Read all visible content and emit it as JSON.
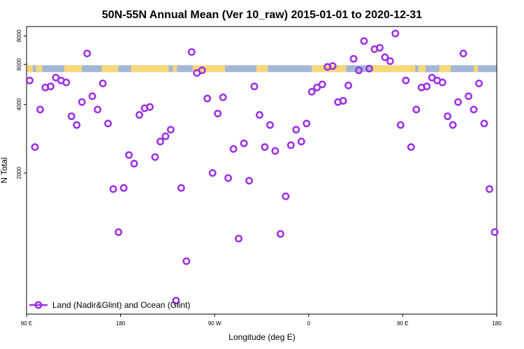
{
  "chart_data": {
    "type": "scatter",
    "title": "50N-55N Annual Mean (Ver 10_raw)   2015-01-01 to 2020-12-31",
    "xlabel": "Longitude (deg E)",
    "ylabel": "N Total",
    "y_scale": "log",
    "ylim": [
      480,
      8800
    ],
    "x_ticks": [
      {
        "value": 90,
        "label": "90 E"
      },
      {
        "value": 180,
        "label": "180"
      },
      {
        "value": 270,
        "label": "90 W"
      },
      {
        "value": 360,
        "label": "0"
      },
      {
        "value": 450,
        "label": "90 E"
      },
      {
        "value": 540,
        "label": "180"
      }
    ],
    "xlim": [
      90,
      540
    ],
    "y_ticks": [
      {
        "value": 2000,
        "label": "2000"
      },
      {
        "value": 4000,
        "label": "4000"
      },
      {
        "value": 6000,
        "label": "6000"
      },
      {
        "value": 8000,
        "label": "8000"
      }
    ],
    "grid": false,
    "legend_position": "bottom-left",
    "surface_strip": {
      "value_range": [
        5550,
        5950
      ],
      "land_color": "#f6d77a",
      "ocean_color": "#a3b8d8",
      "land_segments": [
        [
          90,
          96
        ],
        [
          99,
          105
        ],
        [
          126,
          143
        ],
        [
          162,
          178
        ],
        [
          190,
          226
        ],
        [
          230,
          234
        ],
        [
          249,
          280
        ],
        [
          310,
          321
        ],
        [
          363,
          396
        ],
        [
          420,
          462
        ],
        [
          465,
          472
        ],
        [
          485,
          496
        ],
        [
          518,
          522
        ]
      ]
    },
    "series": [
      {
        "name": "Land (Nadir&Glint) and Ocean (Glint)",
        "color": "#9b30e8",
        "x": [
          93,
          98,
          103,
          108,
          113,
          118,
          123,
          128,
          133,
          138,
          143,
          148,
          153,
          158,
          163,
          168,
          173,
          178,
          183,
          188,
          193,
          198,
          203,
          208,
          213,
          218,
          223,
          228,
          233,
          238,
          243,
          248,
          253,
          258,
          263,
          268,
          273,
          278,
          283,
          288,
          293,
          298,
          303,
          308,
          313,
          318,
          323,
          328,
          333,
          338,
          343,
          348,
          353,
          358,
          363,
          368,
          373,
          378,
          383,
          388,
          393,
          398,
          403,
          408,
          413,
          418,
          423,
          428,
          433,
          438,
          443,
          448,
          453,
          458,
          463,
          468,
          473,
          478,
          483,
          488,
          493,
          498,
          503,
          508,
          513,
          518,
          523,
          528,
          533,
          538
        ],
        "y": [
          5100,
          2600,
          3800,
          4750,
          4800,
          5250,
          5100,
          5000,
          3550,
          3250,
          4100,
          6700,
          4350,
          3800,
          4950,
          3300,
          1700,
          1100,
          1720,
          2400,
          2200,
          3600,
          3850,
          3900,
          2350,
          2750,
          2900,
          3100,
          550,
          1720,
          820,
          6800,
          5500,
          5650,
          4250,
          2000,
          3650,
          4300,
          1900,
          2550,
          1030,
          2700,
          1850,
          4800,
          3600,
          2600,
          3250,
          2500,
          1080,
          1580,
          2650,
          3100,
          2750,
          3300,
          4550,
          4750,
          4900,
          5850,
          5900,
          4100,
          4150,
          4850,
          6350,
          5650,
          7600,
          5750,
          7000,
          7100,
          6450,
          6200,
          8200,
          3250,
          5100,
          2600,
          3800,
          4750,
          4800,
          5250,
          5100,
          5000,
          3550,
          3250,
          4100,
          6700,
          4350,
          3800,
          4950,
          3300,
          1700,
          1100
        ]
      }
    ]
  }
}
